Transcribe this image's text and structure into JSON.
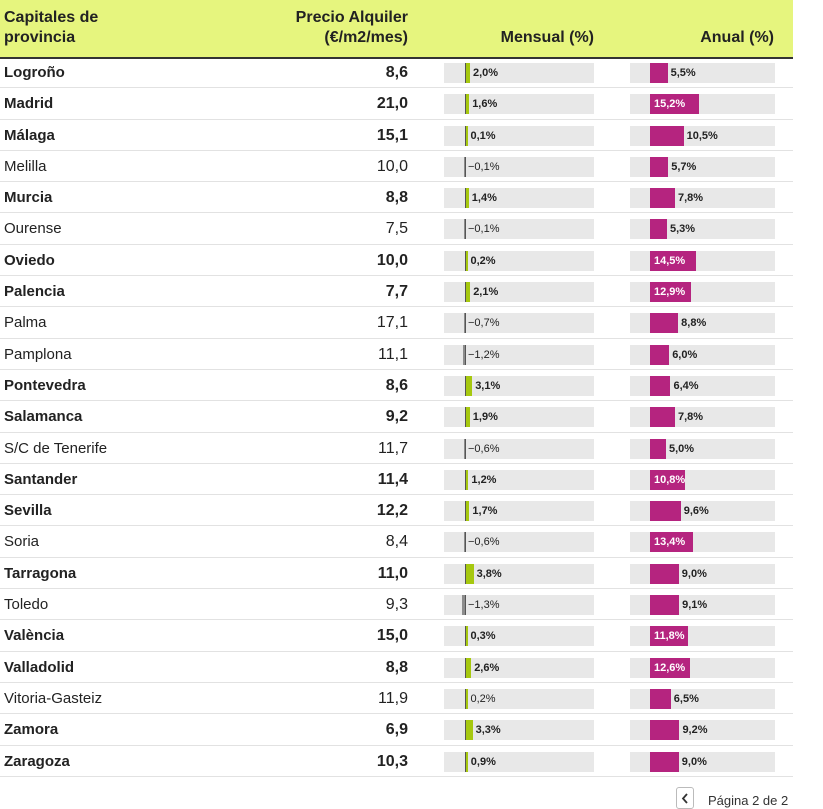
{
  "header": {
    "city": "Capitales de provincia",
    "price": "Precio Alquiler (€/m2/mes)",
    "mensual": "Mensual (%)",
    "anual": "Anual (%)"
  },
  "chart_data": {
    "type": "table",
    "columns": [
      "Capitales de provincia",
      "Precio Alquiler (€/m2/mes)",
      "Mensual (%)",
      "Anual (%)"
    ],
    "mensual_range": [
      -1.5,
      8.5
    ],
    "anual_range": [
      0,
      20
    ],
    "rows": [
      {
        "city": "Logroño",
        "price": "8,6",
        "mensual": 2.0,
        "mensual_label": "2,0%",
        "anual": 5.5,
        "anual_label": "5,5%",
        "bold": true
      },
      {
        "city": "Madrid",
        "price": "21,0",
        "mensual": 1.6,
        "mensual_label": "1,6%",
        "anual": 15.2,
        "anual_label": "15,2%",
        "bold": true
      },
      {
        "city": "Málaga",
        "price": "15,1",
        "mensual": 0.1,
        "mensual_label": "0,1%",
        "anual": 10.5,
        "anual_label": "10,5%",
        "bold": true
      },
      {
        "city": "Melilla",
        "price": "10,0",
        "mensual": -0.1,
        "mensual_label": "−0,1%",
        "anual": 5.7,
        "anual_label": "5,7%",
        "bold": false
      },
      {
        "city": "Murcia",
        "price": "8,8",
        "mensual": 1.4,
        "mensual_label": "1,4%",
        "anual": 7.8,
        "anual_label": "7,8%",
        "bold": true
      },
      {
        "city": "Ourense",
        "price": "7,5",
        "mensual": -0.1,
        "mensual_label": "−0,1%",
        "anual": 5.3,
        "anual_label": "5,3%",
        "bold": false
      },
      {
        "city": "Oviedo",
        "price": "10,0",
        "mensual": 0.2,
        "mensual_label": "0,2%",
        "anual": 14.5,
        "anual_label": "14,5%",
        "bold": true
      },
      {
        "city": "Palencia",
        "price": "7,7",
        "mensual": 2.1,
        "mensual_label": "2,1%",
        "anual": 12.9,
        "anual_label": "12,9%",
        "bold": true
      },
      {
        "city": "Palma",
        "price": "17,1",
        "mensual": -0.7,
        "mensual_label": "−0,7%",
        "anual": 8.8,
        "anual_label": "8,8%",
        "bold": false
      },
      {
        "city": "Pamplona",
        "price": "11,1",
        "mensual": -1.2,
        "mensual_label": "−1,2%",
        "anual": 6.0,
        "anual_label": "6,0%",
        "bold": false
      },
      {
        "city": "Pontevedra",
        "price": "8,6",
        "mensual": 3.1,
        "mensual_label": "3,1%",
        "anual": 6.4,
        "anual_label": "6,4%",
        "bold": true
      },
      {
        "city": "Salamanca",
        "price": "9,2",
        "mensual": 1.9,
        "mensual_label": "1,9%",
        "anual": 7.8,
        "anual_label": "7,8%",
        "bold": true
      },
      {
        "city": "S/C de Tenerife",
        "price": "11,7",
        "mensual": -0.6,
        "mensual_label": "−0,6%",
        "anual": 5.0,
        "anual_label": "5,0%",
        "bold": false
      },
      {
        "city": "Santander",
        "price": "11,4",
        "mensual": 1.2,
        "mensual_label": "1,2%",
        "anual": 10.8,
        "anual_label": "10,8%",
        "bold": true
      },
      {
        "city": "Sevilla",
        "price": "12,2",
        "mensual": 1.7,
        "mensual_label": "1,7%",
        "anual": 9.6,
        "anual_label": "9,6%",
        "bold": true
      },
      {
        "city": "Soria",
        "price": "8,4",
        "mensual": -0.6,
        "mensual_label": "−0,6%",
        "anual": 13.4,
        "anual_label": "13,4%",
        "bold": false
      },
      {
        "city": "Tarragona",
        "price": "11,0",
        "mensual": 3.8,
        "mensual_label": "3,8%",
        "anual": 9.0,
        "anual_label": "9,0%",
        "bold": true
      },
      {
        "city": "Toledo",
        "price": "9,3",
        "mensual": -1.3,
        "mensual_label": "−1,3%",
        "anual": 9.1,
        "anual_label": "9,1%",
        "bold": false
      },
      {
        "city": "València",
        "price": "15,0",
        "mensual": 0.3,
        "mensual_label": "0,3%",
        "anual": 11.8,
        "anual_label": "11,8%",
        "bold": true
      },
      {
        "city": "Valladolid",
        "price": "8,8",
        "mensual": 2.6,
        "mensual_label": "2,6%",
        "anual": 12.6,
        "anual_label": "12,6%",
        "bold": true
      },
      {
        "city": "Vitoria-Gasteiz",
        "price": "11,9",
        "mensual": 0.2,
        "mensual_label": "0,2%",
        "anual": 6.5,
        "anual_label": "6,5%",
        "bold": false
      },
      {
        "city": "Zamora",
        "price": "6,9",
        "mensual": 3.3,
        "mensual_label": "3,3%",
        "anual": 9.2,
        "anual_label": "9,2%",
        "bold": true
      },
      {
        "city": "Zaragoza",
        "price": "10,3",
        "mensual": 0.9,
        "mensual_label": "0,9%",
        "anual": 9.0,
        "anual_label": "9,0%",
        "bold": true
      }
    ]
  },
  "colors": {
    "header_bg": "#e6f57e",
    "mensual_positive": "#a6c80f",
    "mensual_negative": "#8c8c8c",
    "anual_bar": "#b5247f",
    "bar_track": "#e8e8e8"
  },
  "pager": {
    "prev_icon": "chevron-left-icon",
    "label": "Página 2 de 2"
  }
}
